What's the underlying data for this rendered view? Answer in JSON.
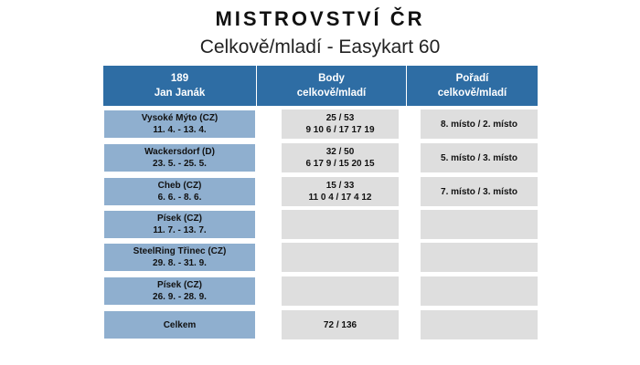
{
  "title": "MISTROVSTVÍ ČR",
  "subtitle": "Celkově/mladí - Easykart 60",
  "header": {
    "driver_number": "189",
    "driver_name": "Jan Janák",
    "points_line1": "Body",
    "points_line2": "celkově/mladí",
    "rank_line1": "Pořadí",
    "rank_line2": "celkově/mladí"
  },
  "colors": {
    "header_bg": "#2e6da4",
    "label_bg": "#8fafcf",
    "value_bg": "#dedede"
  },
  "rows": [
    {
      "event": "Vysoké Mýto (CZ)",
      "dates": "11. 4. - 13. 4.",
      "points": "25 / 53",
      "points_detail": "9 10 6 / 17 17 19",
      "rank": "8. místo / 2. místo"
    },
    {
      "event": "Wackersdorf (D)",
      "dates": "23. 5. - 25. 5.",
      "points": "32 / 50",
      "points_detail": "6 17 9 / 15 20 15",
      "rank": "5. místo / 3. místo"
    },
    {
      "event": "Cheb (CZ)",
      "dates": "6. 6. - 8. 6.",
      "points": "15 / 33",
      "points_detail": "11 0 4 / 17 4 12",
      "rank": "7. místo / 3. místo"
    },
    {
      "event": "Písek (CZ)",
      "dates": "11. 7. - 13. 7.",
      "points": "",
      "points_detail": "",
      "rank": ""
    },
    {
      "event": "SteelRing Třinec (CZ)",
      "dates": "29. 8. - 31. 9.",
      "points": "",
      "points_detail": "",
      "rank": ""
    },
    {
      "event": "Písek (CZ)",
      "dates": "26. 9. - 28. 9.",
      "points": "",
      "points_detail": "",
      "rank": ""
    }
  ],
  "total": {
    "label": "Celkem",
    "points": "72 / 136",
    "rank": ""
  }
}
